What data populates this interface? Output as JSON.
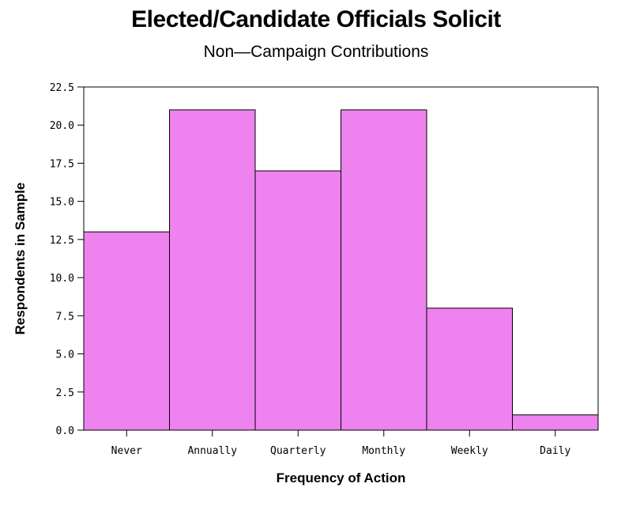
{
  "chart_data": {
    "type": "bar",
    "title": "Elected/Candidate Officials Solicit",
    "subtitle": "Non—Campaign Contributions",
    "xlabel": "Frequency of Action",
    "ylabel": "Respondents in Sample",
    "categories": [
      "Never",
      "Annually",
      "Quarterly",
      "Monthly",
      "Weekly",
      "Daily"
    ],
    "values": [
      13,
      21,
      17,
      21,
      8,
      1
    ],
    "ylim": [
      0,
      22.5
    ],
    "yticks": [
      "0.0",
      "2.5",
      "5.0",
      "7.5",
      "10.0",
      "12.5",
      "15.0",
      "17.5",
      "20.0",
      "22.5"
    ],
    "bar_color": "#EE82EE",
    "grid": false,
    "legend": "none"
  }
}
